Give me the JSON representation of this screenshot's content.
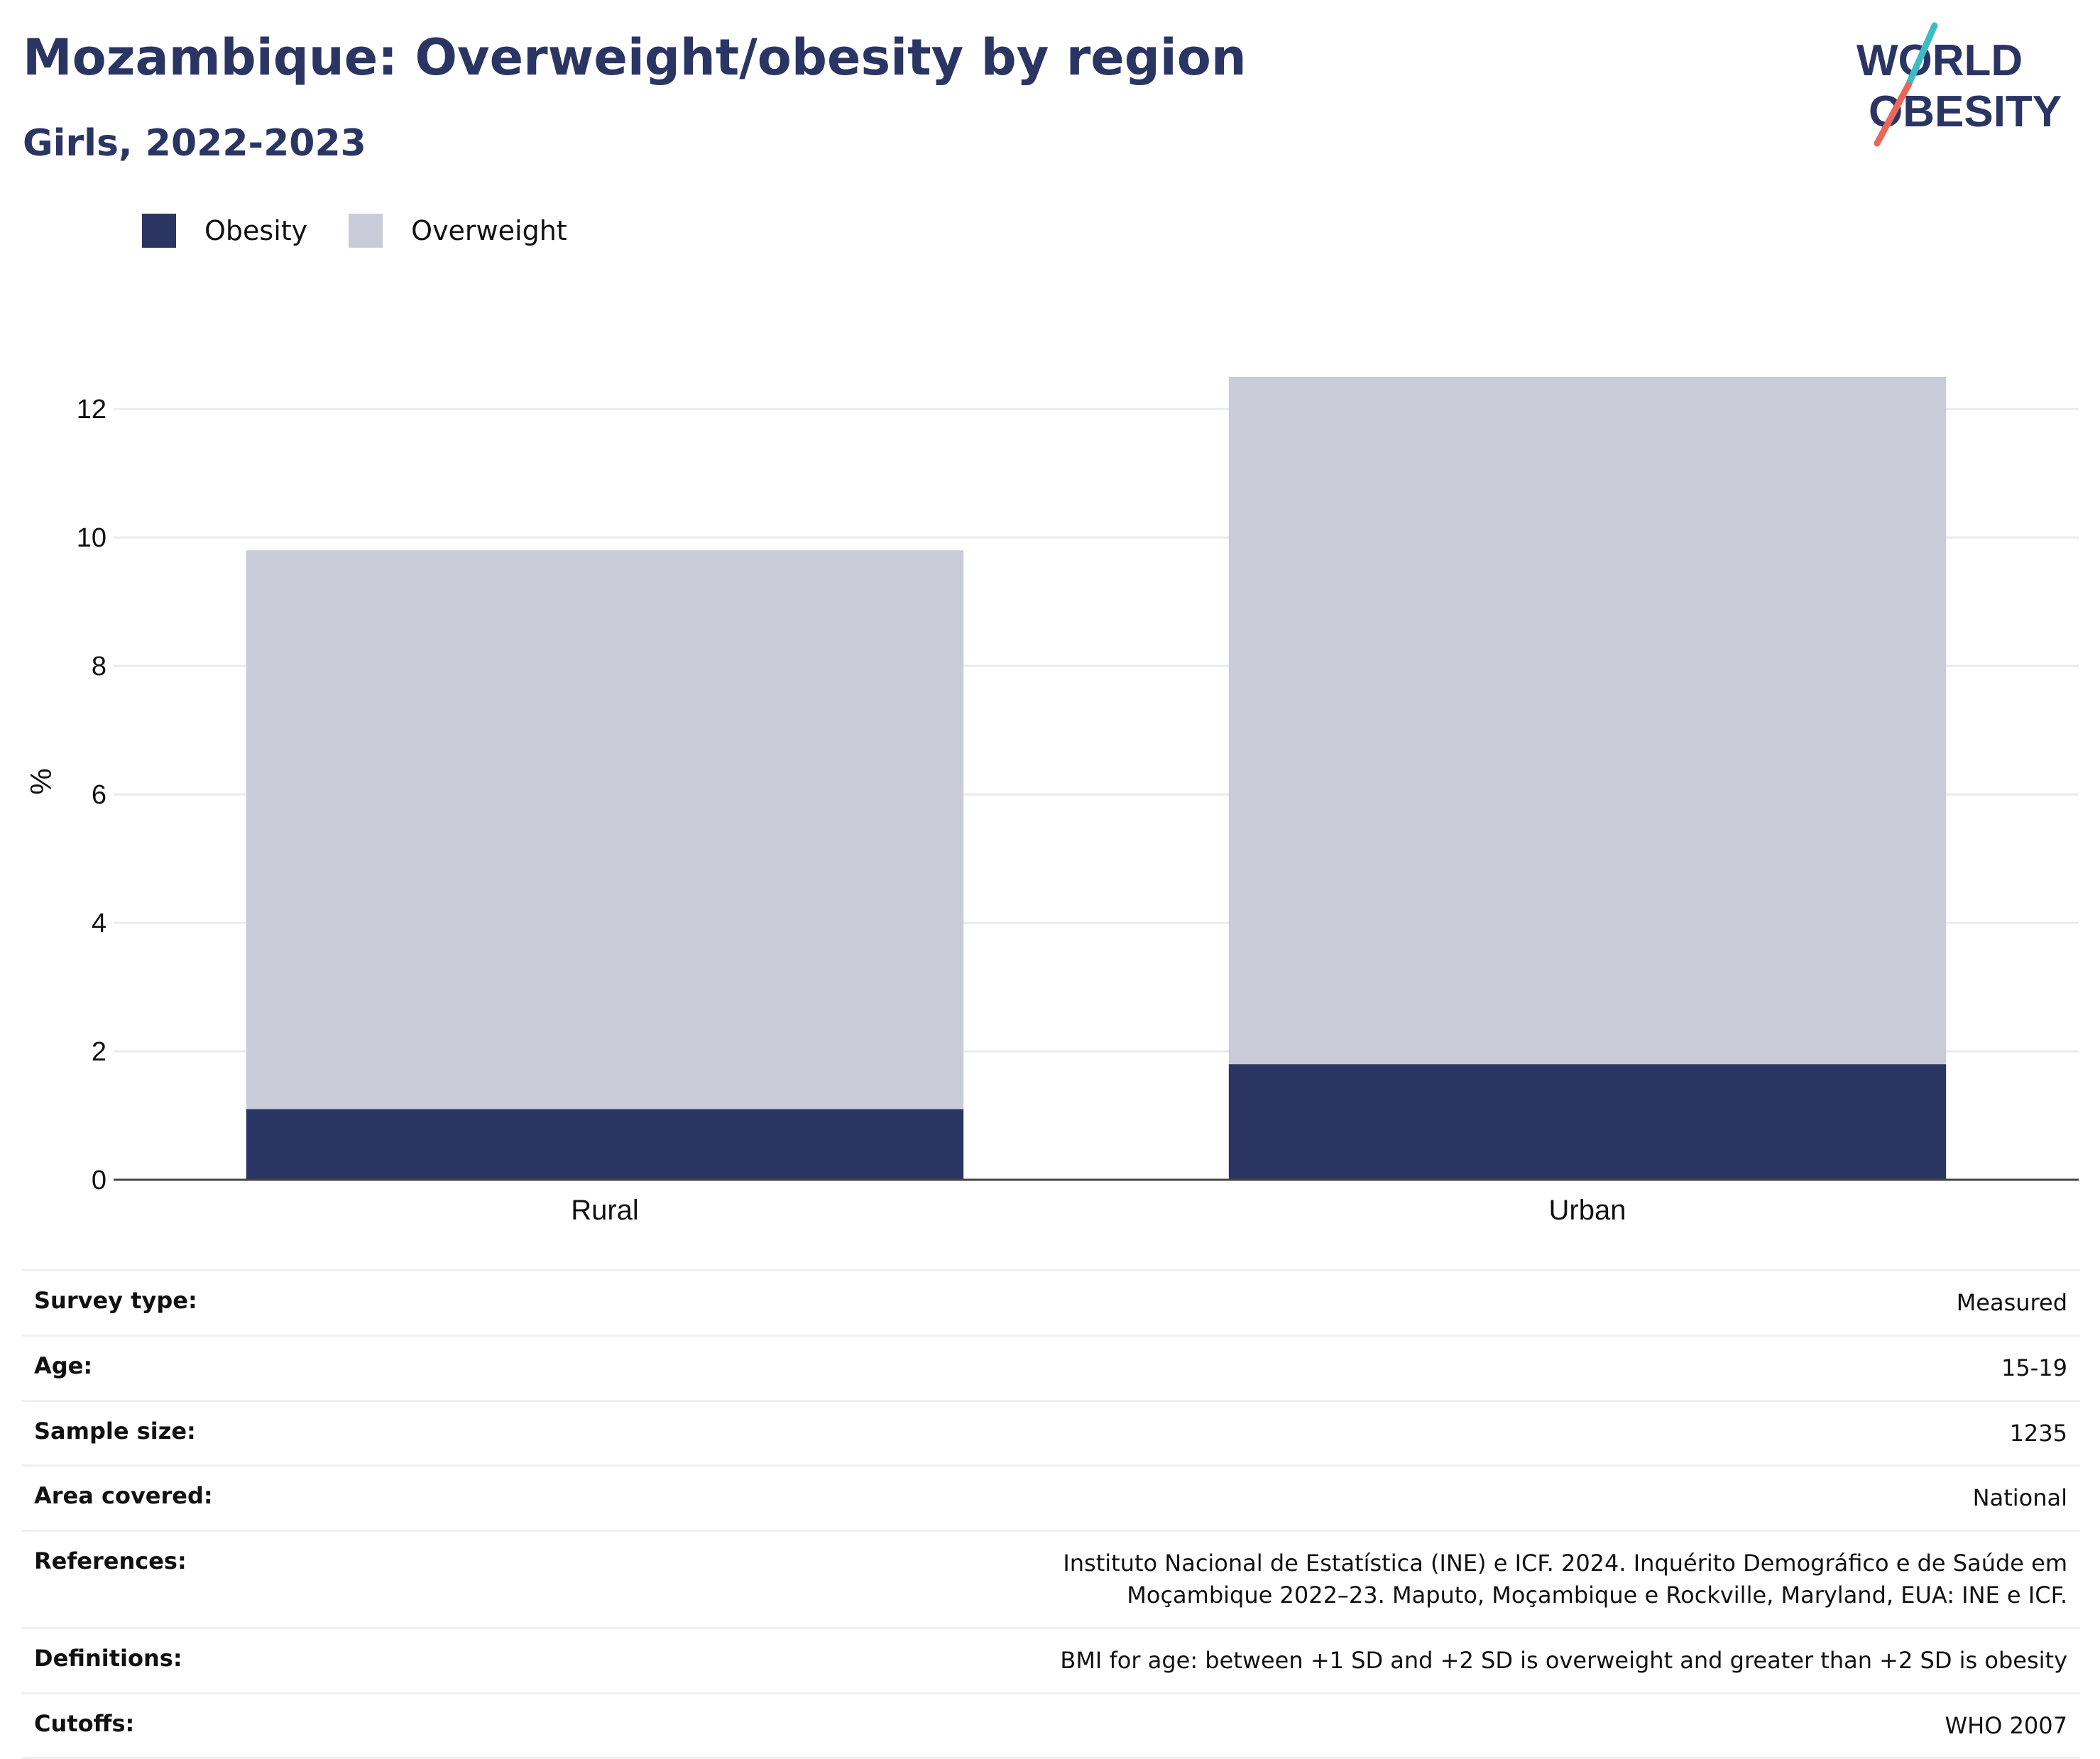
{
  "header": {
    "title": "Mozambique: Overweight/obesity by region",
    "subtitle": "Girls, 2022-2023"
  },
  "logo": {
    "line1": "WORLD",
    "line2": "OBESITY",
    "colors": {
      "text": "#2a3564",
      "slash_top": "#3dbcc4",
      "slash_bottom": "#e8685a"
    }
  },
  "legend": {
    "items": [
      {
        "label": "Obesity",
        "color": "#2a3564"
      },
      {
        "label": "Overweight",
        "color": "#c9ccd8"
      }
    ]
  },
  "chart_data": {
    "type": "bar",
    "stacked": true,
    "categories": [
      "Rural",
      "Urban"
    ],
    "series": [
      {
        "name": "Obesity",
        "values": [
          1.1,
          1.8
        ],
        "color": "#2a3564"
      },
      {
        "name": "Overweight",
        "values": [
          8.7,
          10.7
        ],
        "color": "#c9ccd8"
      }
    ],
    "ylabel": "%",
    "xlabel": "",
    "ylim": [
      0,
      12.4
    ],
    "yticks": [
      0,
      2,
      4,
      6,
      8,
      10,
      12
    ],
    "grid": true
  },
  "info": {
    "rows": [
      {
        "label": "Survey type:",
        "value": "Measured"
      },
      {
        "label": "Age:",
        "value": "15-19"
      },
      {
        "label": "Sample size:",
        "value": "1235"
      },
      {
        "label": "Area covered:",
        "value": "National"
      },
      {
        "label": "References:",
        "value": "Instituto Nacional de Estatística (INE) e ICF. 2024. Inquérito Demográfico e de Saúde em Moçambique 2022–23. Maputo, Moçambique e Rockville, Maryland, EUA: INE e ICF."
      },
      {
        "label": "Definitions:",
        "value": "BMI for age: between +1 SD and +2 SD is overweight and greater than +2 SD is obesity"
      },
      {
        "label": "Cutoffs:",
        "value": "WHO 2007"
      }
    ]
  }
}
